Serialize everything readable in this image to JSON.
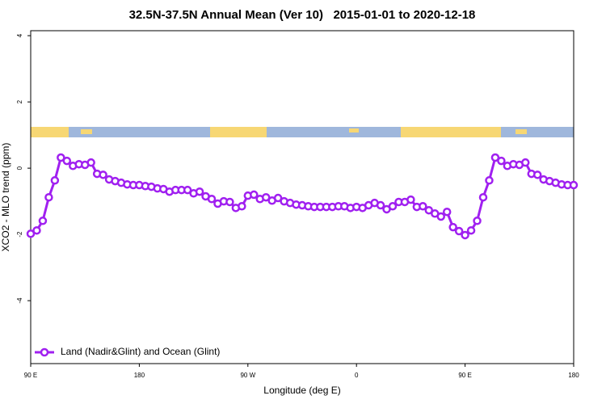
{
  "chart_data": {
    "type": "line",
    "title": "32.5N-37.5N Annual Mean (Ver 10)   2015-01-01 to 2020-12-18",
    "x_label": "Longitude (deg E)",
    "y_label": "XCO2 - MLO trend (ppm)",
    "x": [
      90,
      95,
      100,
      105,
      110,
      115,
      120,
      125,
      130,
      135,
      140,
      145,
      150,
      155,
      160,
      165,
      170,
      175,
      180,
      185,
      190,
      195,
      200,
      205,
      210,
      215,
      220,
      225,
      230,
      235,
      240,
      245,
      250,
      255,
      260,
      265,
      270,
      275,
      280,
      285,
      290,
      295,
      300,
      305,
      310,
      315,
      320,
      325,
      330,
      335,
      340,
      345,
      350,
      355,
      360,
      365,
      370,
      375,
      380,
      385,
      390,
      395,
      400,
      405,
      410,
      415,
      420,
      425,
      430,
      435,
      440,
      445,
      450,
      455,
      460,
      465,
      470,
      475,
      480,
      485,
      490,
      495,
      500,
      505,
      510,
      515,
      520,
      525,
      530,
      535,
      540
    ],
    "series": [
      {
        "name": "Land (Nadir&Glint) and Ocean (Glint)",
        "color": "#a020f0",
        "values": [
          -1.98,
          -1.88,
          -1.59,
          -0.88,
          -0.37,
          0.32,
          0.22,
          0.07,
          0.12,
          0.1,
          0.17,
          -0.17,
          -0.2,
          -0.34,
          -0.39,
          -0.44,
          -0.49,
          -0.51,
          -0.51,
          -0.54,
          -0.56,
          -0.61,
          -0.63,
          -0.71,
          -0.66,
          -0.66,
          -0.66,
          -0.76,
          -0.71,
          -0.85,
          -0.93,
          -1.07,
          -1.0,
          -1.02,
          -1.2,
          -1.15,
          -0.83,
          -0.8,
          -0.93,
          -0.88,
          -0.98,
          -0.9,
          -1.0,
          -1.05,
          -1.1,
          -1.12,
          -1.15,
          -1.17,
          -1.17,
          -1.17,
          -1.17,
          -1.15,
          -1.15,
          -1.2,
          -1.17,
          -1.2,
          -1.12,
          -1.05,
          -1.12,
          -1.24,
          -1.15,
          -1.02,
          -1.02,
          -0.95,
          -1.17,
          -1.15,
          -1.27,
          -1.37,
          -1.46,
          -1.32,
          -1.78,
          -1.9,
          -2.02,
          -1.88,
          -1.59,
          -0.88,
          -0.37,
          0.32,
          0.22,
          0.07,
          0.12,
          0.1,
          0.17,
          -0.17,
          -0.2,
          -0.34,
          -0.39,
          -0.44,
          -0.49,
          -0.51,
          -0.51
        ]
      }
    ],
    "xlim": [
      90,
      540
    ],
    "xticks": [
      {
        "value": 90,
        "label": "90 E"
      },
      180,
      {
        "value": 270,
        "label": "90 W"
      },
      {
        "value": 360,
        "label": "0"
      },
      {
        "value": 450,
        "label": "90 E"
      },
      {
        "value": 540,
        "label": "180"
      }
    ],
    "ylim": [
      -5.9,
      4.15
    ],
    "yticks": [
      -4,
      -2,
      0,
      2,
      4
    ],
    "legend": "bottom-left"
  }
}
